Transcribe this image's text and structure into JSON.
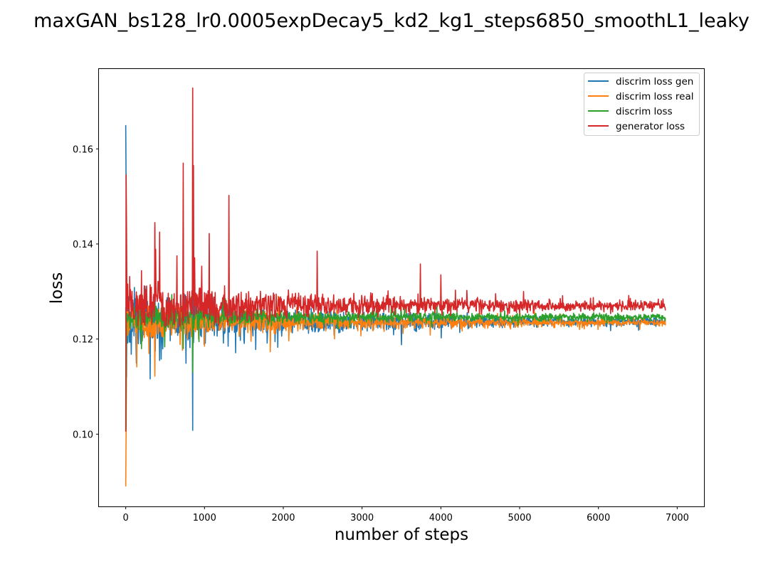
{
  "chart_data": {
    "type": "line",
    "title": "maxGAN_bs128_lr0.0005expDecay5_kd2_kg1_steps6850_smoothL1_leaky",
    "xlabel": "number of steps",
    "ylabel": "loss",
    "xlim": [
      -340,
      7340
    ],
    "ylim": [
      0.0848,
      0.1768
    ],
    "xticks": [
      0,
      1000,
      2000,
      3000,
      4000,
      5000,
      6000,
      7000
    ],
    "xtick_labels": [
      "0",
      "1000",
      "2000",
      "3000",
      "4000",
      "5000",
      "6000",
      "7000"
    ],
    "yticks": [
      0.1,
      0.12,
      0.14,
      0.16
    ],
    "ytick_labels": [
      "0.10",
      "0.12",
      "0.14",
      "0.16"
    ],
    "legend_position": "top-right",
    "steps": 6850,
    "series": [
      {
        "name": "discrim loss gen",
        "color": "#1f77b4",
        "center": 0.1237,
        "noise_start": 0.0045,
        "noise_end": 0.0004,
        "spikes": [
          [
            0,
            0.165
          ],
          [
            3,
            0.152
          ],
          [
            8,
            0.112
          ],
          [
            370,
            0.1435
          ],
          [
            430,
            0.1155
          ],
          [
            730,
            0.1285
          ],
          [
            850,
            0.1008
          ],
          [
            855,
            0.153
          ],
          [
            1300,
            0.1185
          ],
          [
            1650,
            0.1178
          ],
          [
            3500,
            0.1188
          ]
        ]
      },
      {
        "name": "discrim loss real",
        "color": "#ff7f0e",
        "center": 0.1235,
        "noise_start": 0.003,
        "noise_end": 0.0004,
        "spikes": [
          [
            0,
            0.089
          ],
          [
            5,
            0.1005
          ],
          [
            370,
            0.1122
          ],
          [
            850,
            0.118
          ],
          [
            1000,
            0.1185
          ],
          [
            1300,
            0.1225
          ]
        ]
      },
      {
        "name": "discrim loss",
        "color": "#2ca02c",
        "center": 0.1246,
        "noise_start": 0.002,
        "noise_end": 0.0004,
        "spikes": [
          [
            5,
            0.101
          ],
          [
            730,
            0.118
          ],
          [
            850,
            0.113
          ],
          [
            450,
            0.1265
          ]
        ]
      },
      {
        "name": "generator loss",
        "color": "#d62728",
        "center": 0.127,
        "noise_start": 0.0042,
        "noise_end": 0.0006,
        "spikes": [
          [
            0,
            0.1005
          ],
          [
            5,
            0.1545
          ],
          [
            10,
            0.1435
          ],
          [
            370,
            0.1445
          ],
          [
            430,
            0.1425
          ],
          [
            650,
            0.1375
          ],
          [
            730,
            0.157
          ],
          [
            850,
            0.1728
          ],
          [
            860,
            0.1565
          ],
          [
            1060,
            0.1422
          ],
          [
            1310,
            0.1502
          ],
          [
            2430,
            0.1385
          ],
          [
            3740,
            0.1358
          ],
          [
            4000,
            0.1335
          ]
        ]
      }
    ]
  }
}
